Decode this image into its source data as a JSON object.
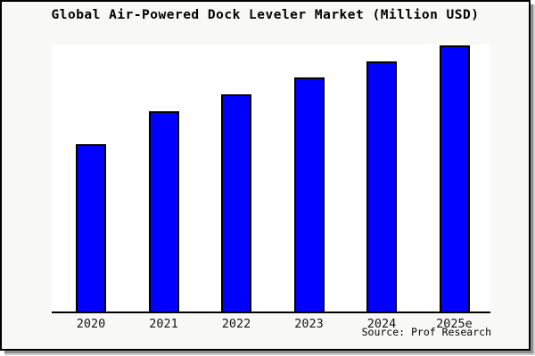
{
  "title": "Global Air-Powered Dock Leveler Market (Million USD)",
  "source_note": "Source: Prof Research",
  "colors": {
    "bar_fill": "#0000ff",
    "bar_border": "#000000",
    "frame_border": "#000000",
    "frame_background": "#f8f8f6",
    "plot_background": "#ffffff",
    "shadow": "#8f8f8f"
  },
  "chart_data": {
    "type": "bar",
    "title": "Global Air-Powered Dock Leveler Market (Million USD)",
    "categories": [
      "2020",
      "2021",
      "2022",
      "2023",
      "2024",
      "2025e"
    ],
    "values": [
      62.9,
      75.3,
      81.6,
      88.0,
      94.0,
      100.0
    ],
    "value_note": "y-axis has no ticks or labels in the image; values are estimated relative bar heights as % of the tallest (2025e) bar",
    "xlabel": "",
    "ylabel": "",
    "ylim": [
      0,
      100
    ],
    "grid": false,
    "legend": false,
    "bar_color": "#0000ff",
    "bar_border_color": "#000000",
    "source_note": "Source: Prof Research"
  }
}
